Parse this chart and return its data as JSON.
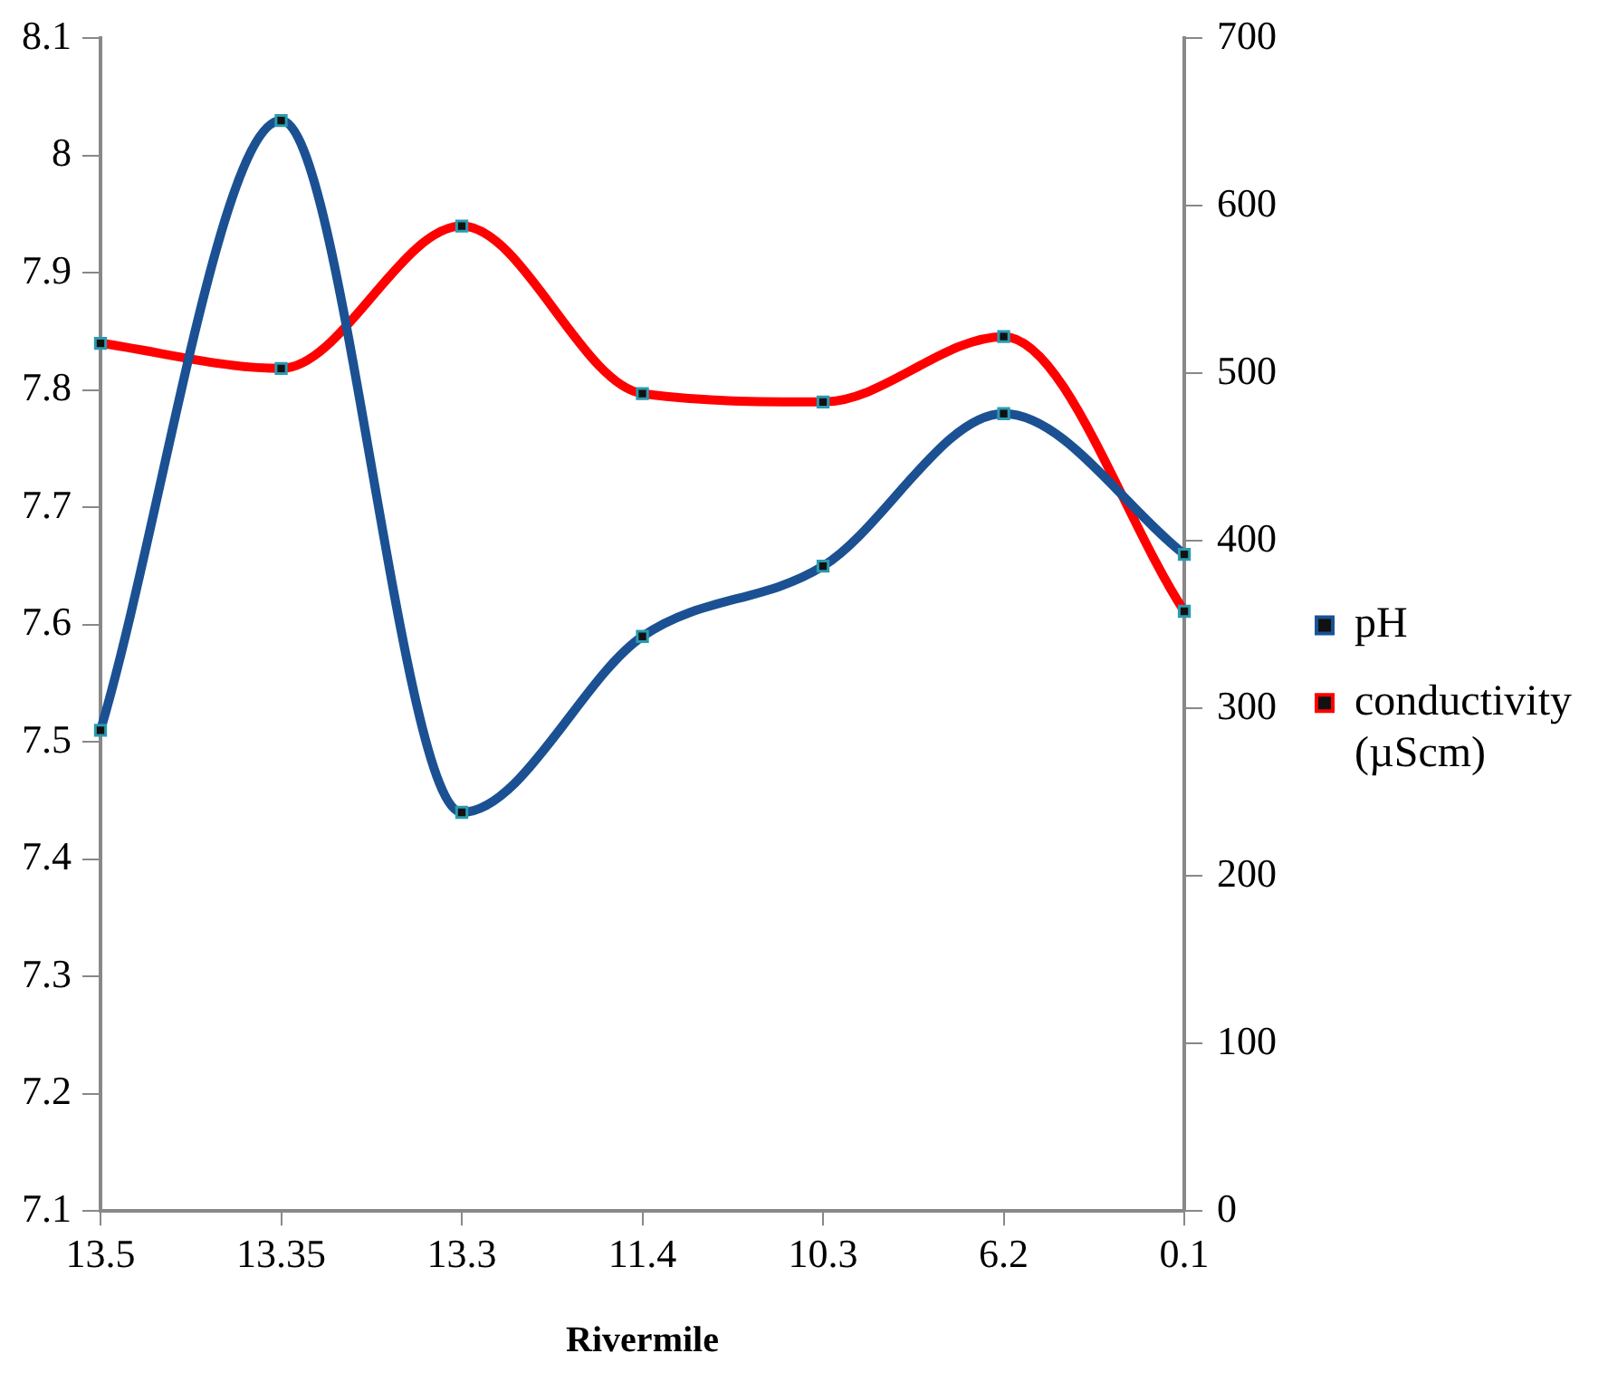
{
  "chart_data": {
    "type": "line",
    "xlabel": "Rivermile",
    "categories": [
      "13.5",
      "13.35",
      "13.3",
      "11.4",
      "10.3",
      "6.2",
      "0.1"
    ],
    "series": [
      {
        "name": "pH",
        "color": "#1b5193",
        "values": [
          7.51,
          8.03,
          7.44,
          7.59,
          7.65,
          7.78,
          7.66
        ]
      },
      {
        "name": "conductivity (µScm)",
        "color": "#ff0000",
        "axis": "y2",
        "values": [
          518,
          503,
          588,
          488,
          483,
          522,
          358
        ]
      }
    ],
    "ylim": [
      7.1,
      8.1
    ],
    "yticks": [
      7.1,
      7.2,
      7.3,
      7.4,
      7.5,
      7.6,
      7.7,
      7.8,
      7.9,
      8,
      8.1
    ],
    "y2lim": [
      0,
      700
    ],
    "y2ticks": [
      0,
      100,
      200,
      300,
      400,
      500,
      600,
      700
    ],
    "legend": "right",
    "marker": "square",
    "line_style": "solid"
  }
}
